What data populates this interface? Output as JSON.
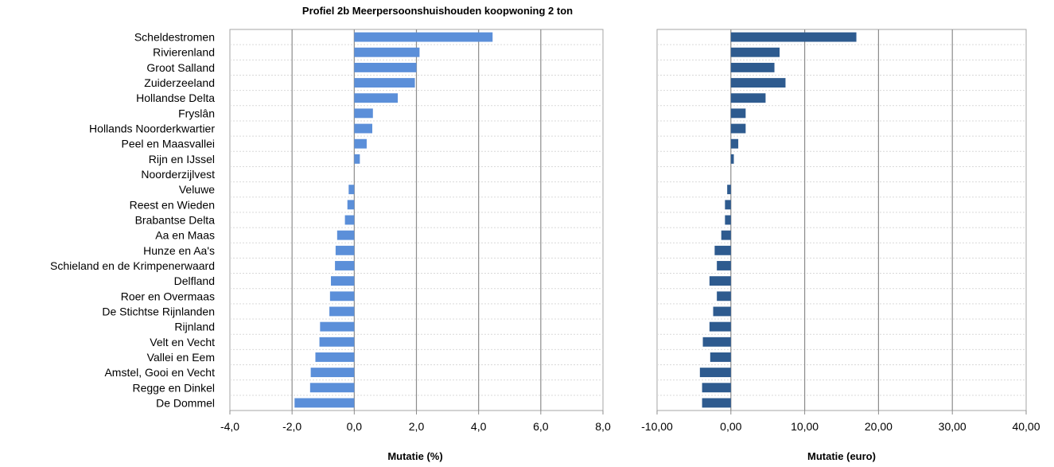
{
  "chart_data": [
    {
      "type": "bar",
      "orientation": "horizontal",
      "title": "Profiel 2b Meerpersoonshuishouden koopwoning 2 ton",
      "xlabel": "Mutatie (%)",
      "ylabel": "",
      "xlim": [
        -4.0,
        8.0
      ],
      "xticks": [
        "-4,0",
        "-2,0",
        "0,0",
        "2,0",
        "4,0",
        "6,0",
        "8,0"
      ],
      "bar_color": "#5b8fd9",
      "grid": true,
      "categories": [
        "Scheldestromen",
        "Rivierenland",
        "Groot Salland",
        "Zuiderzeeland",
        "Hollandse Delta",
        "Fryslân",
        "Hollands Noorderkwartier",
        "Peel en Maasvallei",
        "Rijn en IJssel",
        "Noorderzijlvest",
        "Veluwe",
        "Reest en Wieden",
        "Brabantse Delta",
        "Aa en Maas",
        "Hunze en Aa's",
        "Schieland en de Krimpenerwaard",
        "Delfland",
        "Roer en Overmaas",
        "De Stichtse Rijnlanden",
        "Rijnland",
        "Velt en Vecht",
        "Vallei en Eem",
        "Amstel, Gooi en Vecht",
        "Regge en Dinkel",
        "De Dommel"
      ],
      "values": [
        4.45,
        2.1,
        2.0,
        1.95,
        1.4,
        0.6,
        0.58,
        0.4,
        0.18,
        0.0,
        -0.18,
        -0.22,
        -0.3,
        -0.55,
        -0.6,
        -0.62,
        -0.75,
        -0.78,
        -0.8,
        -1.1,
        -1.12,
        -1.25,
        -1.4,
        -1.42,
        -1.92
      ]
    },
    {
      "type": "bar",
      "orientation": "horizontal",
      "title": "",
      "xlabel": "Mutatie (euro)",
      "ylabel": "",
      "xlim": [
        -10.0,
        40.0
      ],
      "xticks": [
        "-10,00",
        "0,00",
        "10,00",
        "20,00",
        "30,00",
        "40,00"
      ],
      "bar_color": "#2e5b8f",
      "grid": true,
      "values": [
        17.0,
        6.6,
        5.9,
        7.4,
        4.7,
        2.0,
        2.0,
        1.0,
        0.4,
        0.0,
        -0.5,
        -0.8,
        -0.8,
        -1.3,
        -2.2,
        -1.9,
        -2.9,
        -1.9,
        -2.4,
        -2.9,
        -3.8,
        -2.8,
        -4.2,
        -3.9,
        -3.9
      ]
    }
  ]
}
